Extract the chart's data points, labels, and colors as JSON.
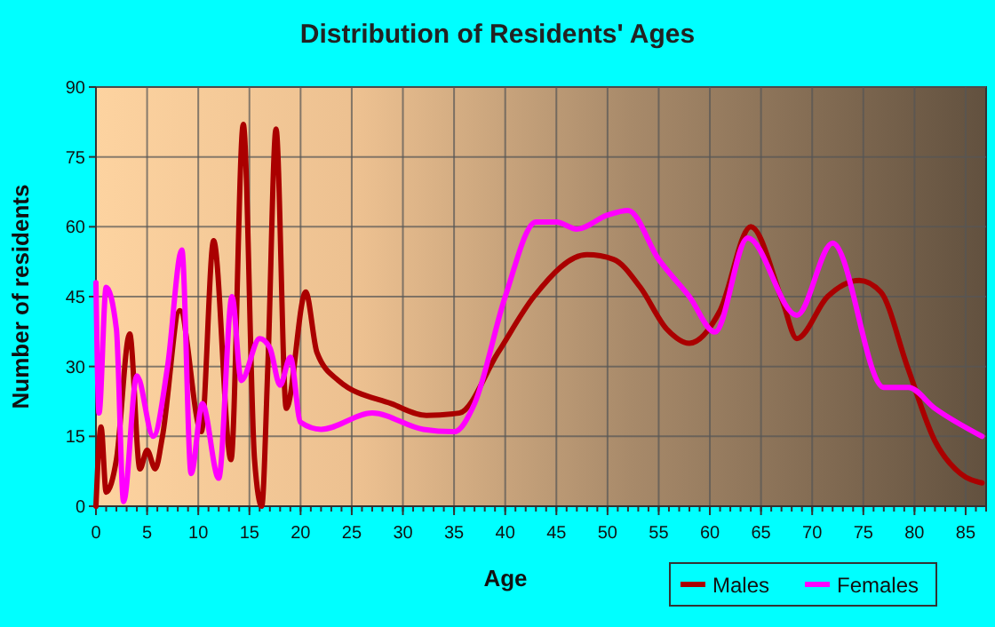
{
  "chart_data": {
    "type": "line",
    "title": "Distribution of Residents' Ages",
    "xlabel": "Age",
    "ylabel": "Number of residents",
    "xlim": [
      0,
      87
    ],
    "ylim": [
      0,
      90
    ],
    "xticks": [
      0,
      5,
      10,
      15,
      20,
      25,
      30,
      35,
      40,
      45,
      50,
      55,
      60,
      65,
      70,
      75,
      80,
      85
    ],
    "yticks": [
      0,
      15,
      30,
      45,
      60,
      75,
      90
    ],
    "grid": true,
    "legend": "bottom right",
    "line_style": "solid",
    "marker": "none",
    "series": [
      {
        "name": "Males",
        "color": "#aa0000",
        "x": [
          0,
          0.5,
          1,
          2,
          3.3,
          4.3,
          5,
          5.8,
          6.5,
          8.2,
          10.3,
          11.5,
          13.2,
          14.4,
          15.5,
          16.2,
          16.8,
          17.6,
          18.6,
          20.5,
          21.6,
          23.7,
          28.9,
          32.3,
          35.5,
          39.3,
          42.8,
          48,
          50.6,
          53.2,
          55.8,
          58,
          61,
          64,
          67.1,
          68.5,
          71.5,
          74.6,
          76.7,
          79.3,
          82,
          84.5,
          86.6
        ],
        "values": [
          0,
          17,
          3,
          10,
          37,
          8,
          12,
          8,
          15,
          42,
          16,
          57,
          10,
          82,
          10,
          0,
          30,
          81,
          21,
          46,
          33,
          27,
          22,
          19.5,
          20,
          33,
          45,
          54,
          53,
          47,
          38,
          35,
          42,
          60,
          44,
          36,
          45,
          48.5,
          46,
          30,
          14,
          7,
          5
        ]
      },
      {
        "name": "Females",
        "color": "#ff00ff",
        "x": [
          0,
          0.3,
          1,
          2,
          2.7,
          4,
          5.6,
          7,
          8.4,
          9.3,
          10.4,
          12,
          13.3,
          14.2,
          16,
          17,
          18,
          19,
          20,
          22,
          27,
          32,
          35,
          37,
          40,
          43,
          45,
          47,
          50,
          52,
          55,
          58,
          60.5,
          63.7,
          68.5,
          72,
          77,
          79.4,
          82,
          86.6
        ],
        "values": [
          48,
          20,
          47,
          38,
          1,
          28,
          15,
          30,
          55,
          7,
          22,
          6,
          45,
          27,
          36,
          34,
          26,
          32,
          18,
          16.5,
          20,
          16.5,
          16,
          22,
          45,
          61,
          61,
          59.5,
          62.5,
          63.5,
          53,
          45,
          37.4,
          57.6,
          41,
          56.5,
          25.5,
          25.5,
          21,
          15
        ]
      }
    ]
  }
}
